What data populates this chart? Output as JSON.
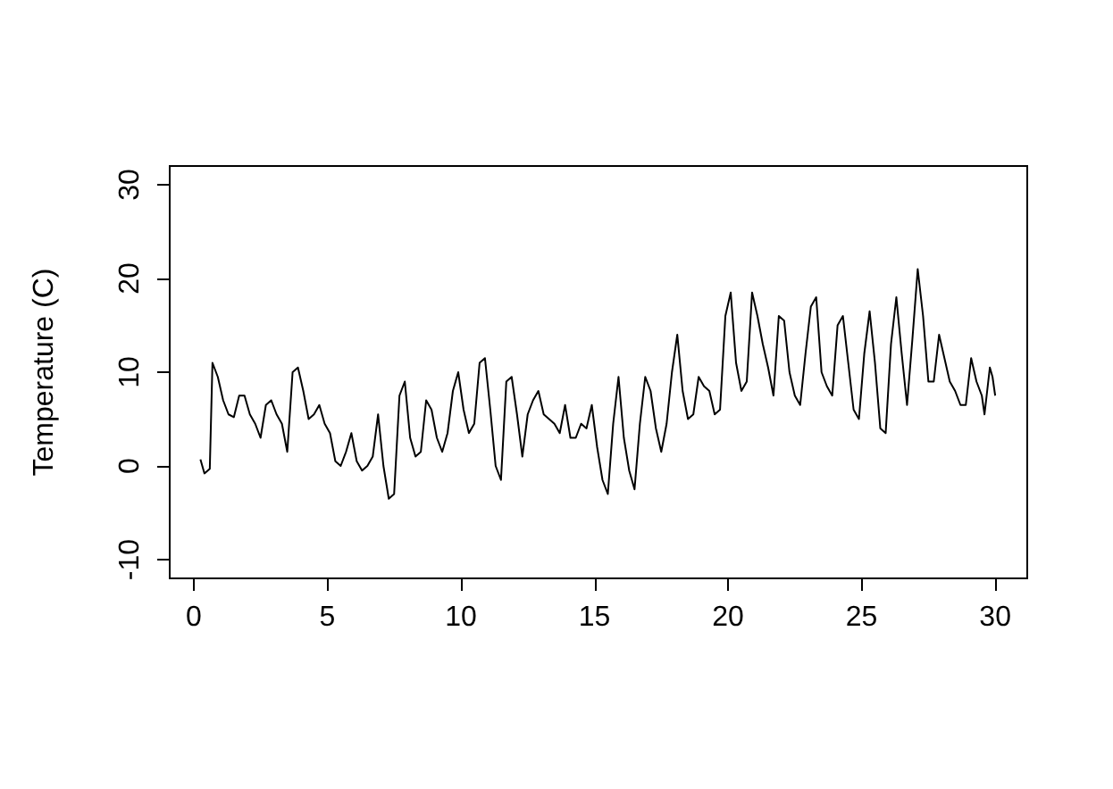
{
  "chart_data": {
    "type": "line",
    "ylabel": "Temperature (C)",
    "xlim": [
      -0.9,
      31.2
    ],
    "ylim": [
      -12,
      32
    ],
    "xticks": [
      0,
      5,
      10,
      15,
      20,
      25,
      30
    ],
    "yticks": [
      -10,
      0,
      10,
      20,
      30
    ],
    "grid": false,
    "marker": "none",
    "line_style": "solid",
    "x": [
      0.25,
      0.4,
      0.6,
      0.7,
      0.9,
      1.1,
      1.3,
      1.5,
      1.7,
      1.9,
      2.1,
      2.3,
      2.5,
      2.7,
      2.9,
      3.1,
      3.3,
      3.5,
      3.7,
      3.9,
      4.1,
      4.3,
      4.5,
      4.7,
      4.9,
      5.1,
      5.3,
      5.5,
      5.7,
      5.9,
      6.1,
      6.3,
      6.5,
      6.7,
      6.9,
      7.1,
      7.3,
      7.5,
      7.7,
      7.9,
      8.1,
      8.3,
      8.5,
      8.7,
      8.9,
      9.1,
      9.3,
      9.5,
      9.7,
      9.9,
      10.1,
      10.3,
      10.5,
      10.7,
      10.9,
      11.1,
      11.3,
      11.5,
      11.7,
      11.9,
      12.1,
      12.3,
      12.5,
      12.7,
      12.9,
      13.1,
      13.3,
      13.5,
      13.7,
      13.9,
      14.1,
      14.3,
      14.5,
      14.7,
      14.9,
      15.1,
      15.3,
      15.5,
      15.7,
      15.9,
      16.1,
      16.3,
      16.5,
      16.7,
      16.9,
      17.1,
      17.3,
      17.5,
      17.7,
      17.9,
      18.1,
      18.3,
      18.5,
      18.7,
      18.9,
      19.1,
      19.3,
      19.5,
      19.7,
      19.9,
      20.1,
      20.3,
      20.5,
      20.7,
      20.9,
      21.1,
      21.3,
      21.5,
      21.7,
      21.9,
      22.1,
      22.3,
      22.5,
      22.7,
      22.9,
      23.1,
      23.3,
      23.5,
      23.7,
      23.9,
      24.1,
      24.3,
      24.5,
      24.7,
      24.9,
      25.1,
      25.3,
      25.5,
      25.7,
      25.9,
      26.1,
      26.3,
      26.5,
      26.7,
      26.9,
      27.1,
      27.3,
      27.5,
      27.7,
      27.9,
      28.1,
      28.3,
      28.5,
      28.7,
      28.9,
      29.1,
      29.3,
      29.5,
      29.6,
      29.8,
      29.9,
      30
    ],
    "series": [
      {
        "color": "#000000",
        "values": [
          0.7,
          -0.8,
          -0.3,
          11,
          9.5,
          7,
          5.5,
          5.2,
          7.5,
          7.5,
          5.5,
          4.5,
          3,
          6.5,
          7,
          5.5,
          4.5,
          1.5,
          10,
          10.5,
          8,
          5,
          5.5,
          6.5,
          4.5,
          3.5,
          0.5,
          0,
          1.5,
          3.5,
          0.5,
          -0.5,
          0,
          1,
          5.5,
          0,
          -3.5,
          -3,
          7.5,
          9,
          3,
          1,
          1.5,
          7,
          6,
          3,
          1.5,
          3.5,
          8,
          10,
          6,
          3.5,
          4.5,
          11,
          11.5,
          6,
          0,
          -1.5,
          9,
          9.5,
          5.5,
          1,
          5.5,
          7,
          8,
          5.5,
          5,
          4.5,
          3.5,
          6.5,
          3,
          3,
          4.5,
          4,
          6.5,
          2,
          -1.5,
          -3,
          4.5,
          9.5,
          3,
          -0.5,
          -2.5,
          4.5,
          9.5,
          8,
          4,
          1.5,
          4.5,
          10,
          14,
          8,
          5,
          5.5,
          9.5,
          8.5,
          8,
          5.5,
          6,
          16,
          18.5,
          11,
          8,
          9,
          18.5,
          16,
          13,
          10.5,
          7.5,
          16,
          15.5,
          10,
          7.5,
          6.5,
          12,
          17,
          18,
          10,
          8.5,
          7.5,
          15,
          16,
          11,
          6,
          5,
          12,
          16.5,
          11,
          4,
          3.5,
          13,
          18,
          12,
          6.5,
          13.5,
          21,
          16,
          9,
          9,
          14,
          11.5,
          9,
          8,
          6.5,
          6.5,
          11.5,
          9,
          7.5,
          5.5,
          10.5,
          9.5,
          7.5
        ]
      }
    ]
  }
}
